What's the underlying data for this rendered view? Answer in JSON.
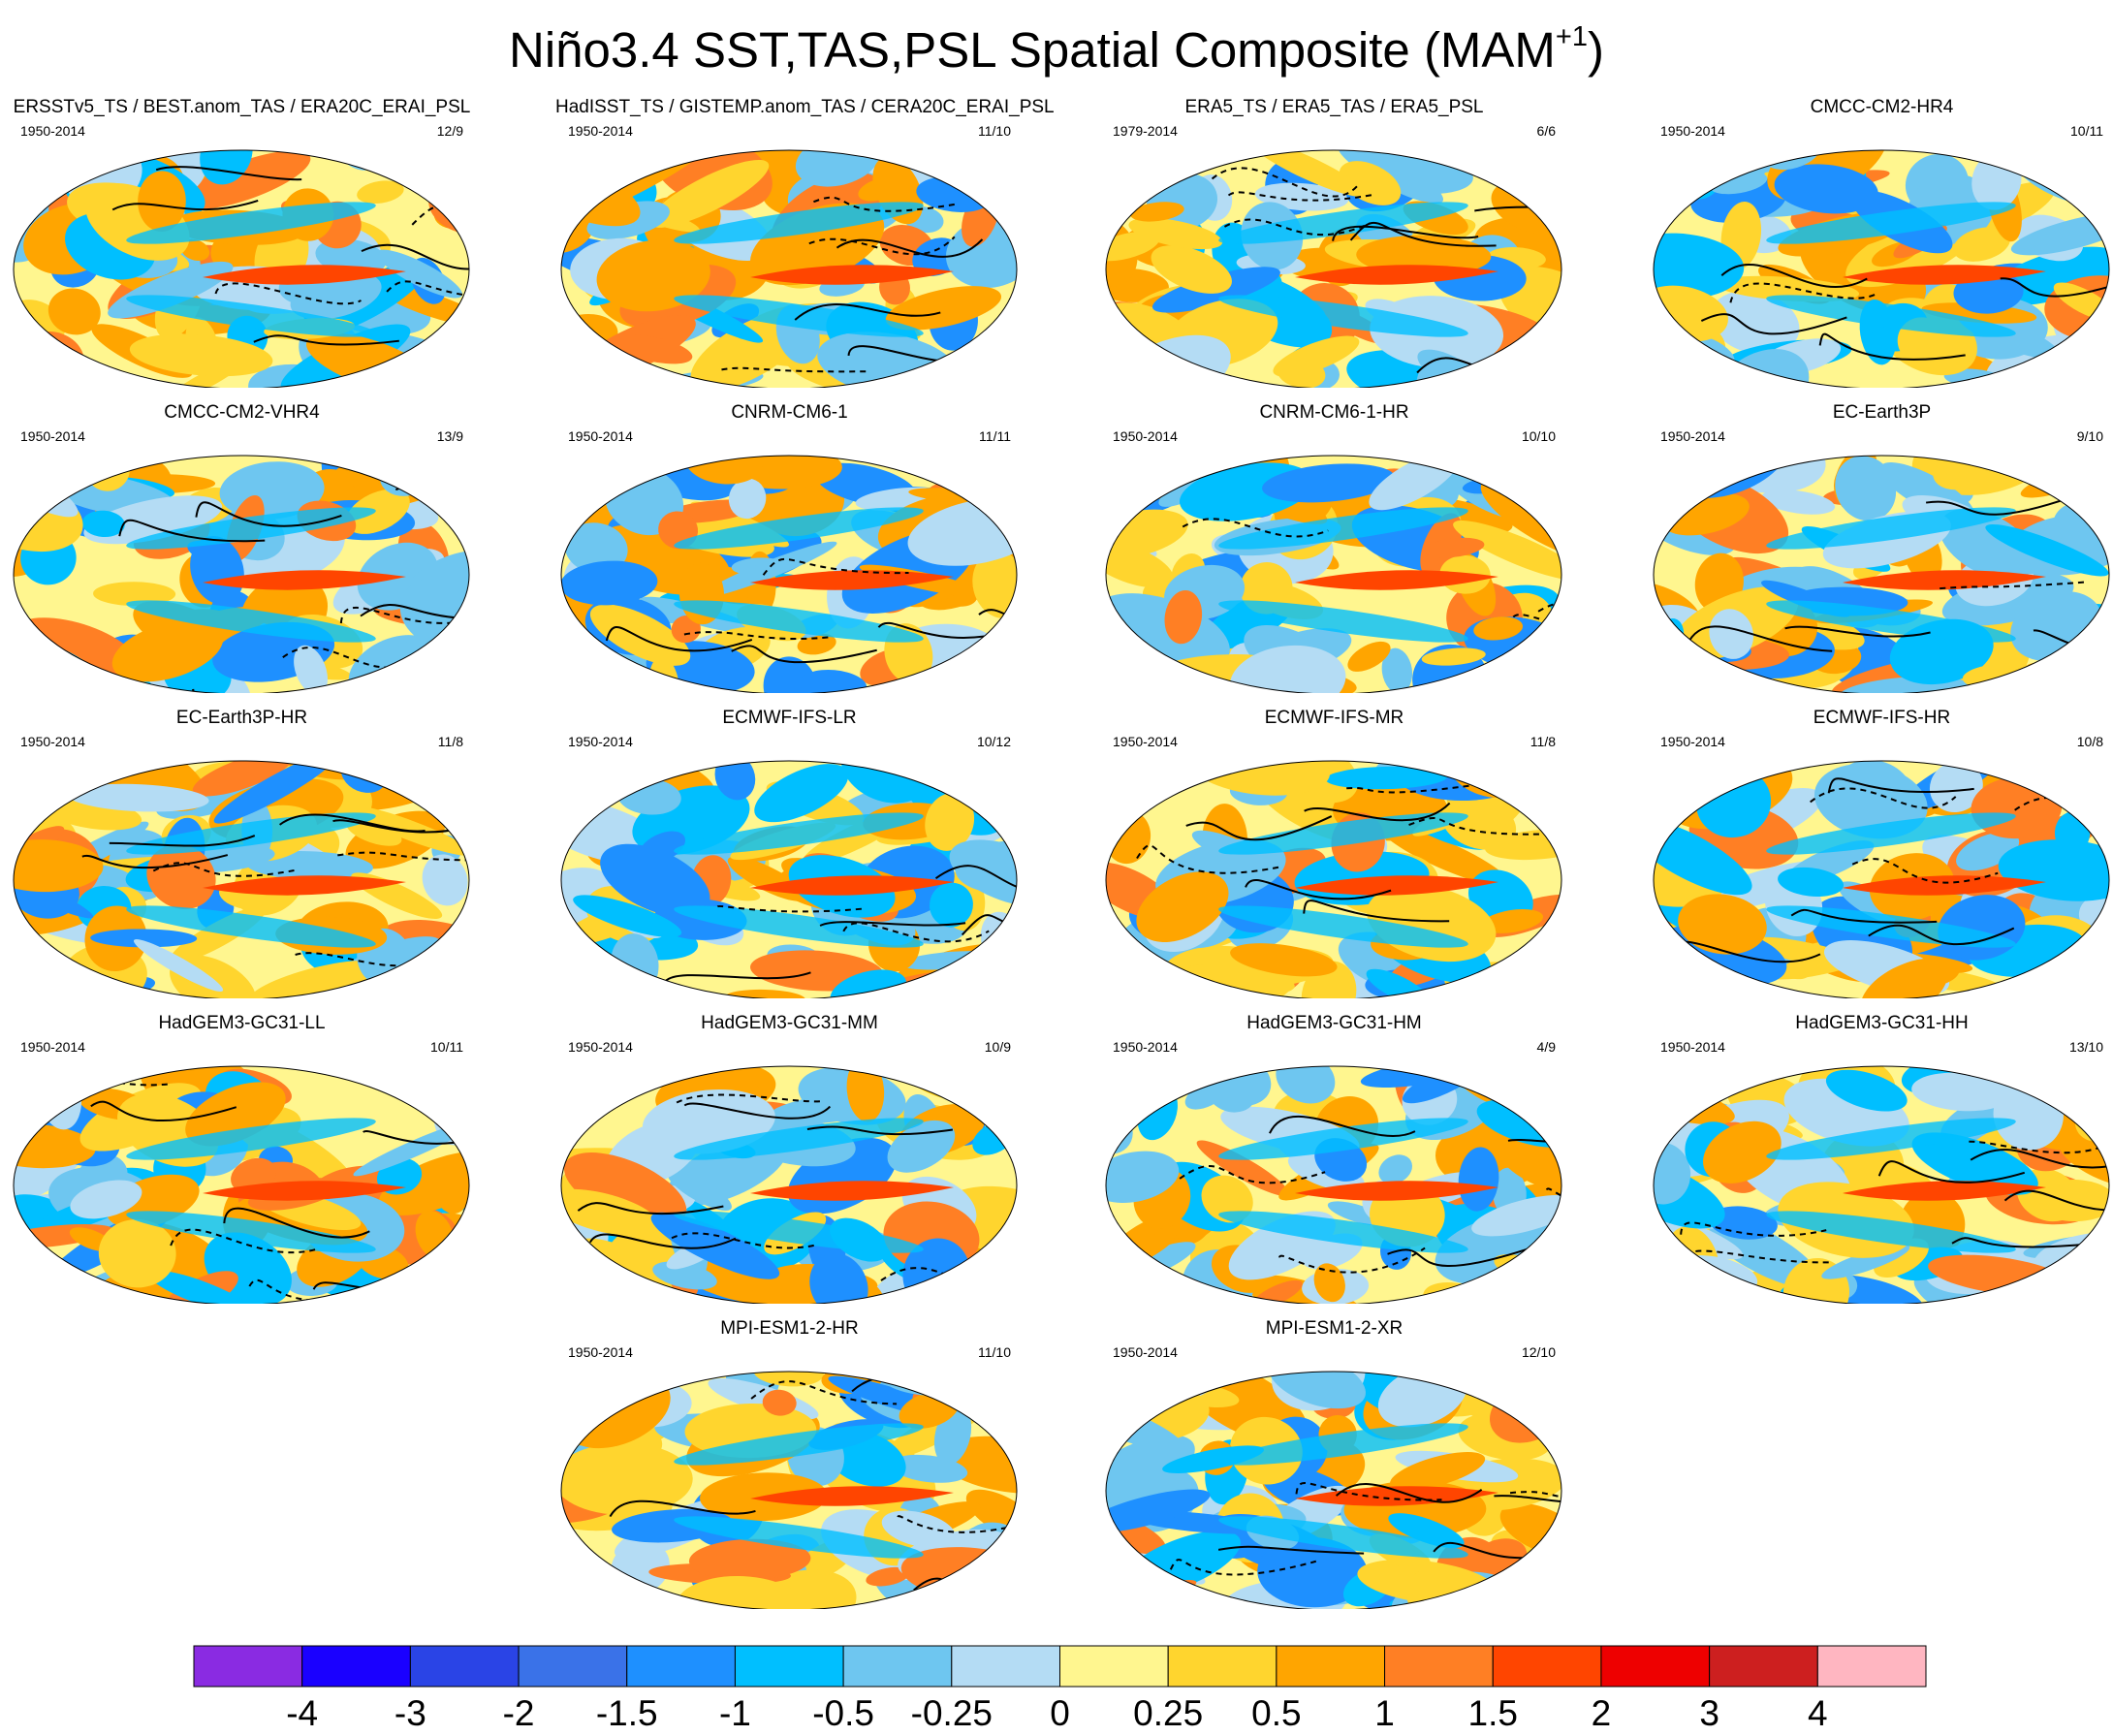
{
  "title_main": "Niño3.4 SST,TAS,PSL Spatial Composite (MAM",
  "title_sup": "+1",
  "title_end": ")",
  "panels": [
    {
      "name": "ERSSTv5_TS / BEST.anom_TAS / ERA20C_ERAI_PSL",
      "period": "1950-2014",
      "count": "12/9"
    },
    {
      "name": "HadISST_TS / GISTEMP.anom_TAS / CERA20C_ERAI_PSL",
      "period": "1950-2014",
      "count": "11/10"
    },
    {
      "name": "ERA5_TS / ERA5_TAS / ERA5_PSL",
      "period": "1979-2014",
      "count": "6/6"
    },
    {
      "name": "CMCC-CM2-HR4",
      "period": "1950-2014",
      "count": "10/11"
    },
    {
      "name": "CMCC-CM2-VHR4",
      "period": "1950-2014",
      "count": "13/9"
    },
    {
      "name": "CNRM-CM6-1",
      "period": "1950-2014",
      "count": "11/11"
    },
    {
      "name": "CNRM-CM6-1-HR",
      "period": "1950-2014",
      "count": "10/10"
    },
    {
      "name": "EC-Earth3P",
      "period": "1950-2014",
      "count": "9/10"
    },
    {
      "name": "EC-Earth3P-HR",
      "period": "1950-2014",
      "count": "11/8"
    },
    {
      "name": "ECMWF-IFS-LR",
      "period": "1950-2014",
      "count": "10/12"
    },
    {
      "name": "ECMWF-IFS-MR",
      "period": "1950-2014",
      "count": "11/8"
    },
    {
      "name": "ECMWF-IFS-HR",
      "period": "1950-2014",
      "count": "10/8"
    },
    {
      "name": "HadGEM3-GC31-LL",
      "period": "1950-2014",
      "count": "10/11"
    },
    {
      "name": "HadGEM3-GC31-MM",
      "period": "1950-2014",
      "count": "10/9"
    },
    {
      "name": "HadGEM3-GC31-HM",
      "period": "1950-2014",
      "count": "4/9"
    },
    {
      "name": "HadGEM3-GC31-HH",
      "period": "1950-2014",
      "count": "13/10"
    },
    {
      "name": "MPI-ESM1-2-HR",
      "period": "1950-2014",
      "count": "11/10"
    },
    {
      "name": "MPI-ESM1-2-XR",
      "period": "1950-2014",
      "count": "12/10"
    }
  ],
  "colorbar": {
    "colors": [
      "#8a2be2",
      "#1a00ff",
      "#2a44e6",
      "#3a72e8",
      "#1e90ff",
      "#00bfff",
      "#6ec6f0",
      "#b4dcf4",
      "#fff68f",
      "#ffd52e",
      "#ffa500",
      "#ff7f24",
      "#ff4500",
      "#ee0000",
      "#cd1f1f",
      "#ffb6c1"
    ],
    "labels": [
      "-4",
      "-3",
      "-2",
      "-1.5",
      "-1",
      "-0.5",
      "-0.25",
      "0",
      "0.25",
      "0.5",
      "1",
      "1.5",
      "2",
      "3",
      "4"
    ]
  },
  "chart_data": {
    "type": "heatmap",
    "title": "Niño3.4 SST,TAS,PSL Spatial Composite (MAM+1)",
    "projection": "global map, filled contours with overlaid line contours",
    "color_levels": [
      -4,
      -3,
      -2,
      -1.5,
      -1,
      -0.5,
      -0.25,
      0,
      0.25,
      0.5,
      1,
      1.5,
      2,
      3,
      4
    ],
    "panels": [
      {
        "name": "ERSSTv5_TS / BEST.anom_TAS / ERA20C_ERAI_PSL",
        "period": "1950-2014",
        "count": "12/9"
      },
      {
        "name": "HadISST_TS / GISTEMP.anom_TAS / CERA20C_ERAI_PSL",
        "period": "1950-2014",
        "count": "11/10"
      },
      {
        "name": "ERA5_TS / ERA5_TAS / ERA5_PSL",
        "period": "1979-2014",
        "count": "6/6"
      },
      {
        "name": "CMCC-CM2-HR4",
        "period": "1950-2014",
        "count": "10/11"
      },
      {
        "name": "CMCC-CM2-VHR4",
        "period": "1950-2014",
        "count": "13/9"
      },
      {
        "name": "CNRM-CM6-1",
        "period": "1950-2014",
        "count": "11/11"
      },
      {
        "name": "CNRM-CM6-1-HR",
        "period": "1950-2014",
        "count": "10/10"
      },
      {
        "name": "EC-Earth3P",
        "period": "1950-2014",
        "count": "9/10"
      },
      {
        "name": "EC-Earth3P-HR",
        "period": "1950-2014",
        "count": "11/8"
      },
      {
        "name": "ECMWF-IFS-LR",
        "period": "1950-2014",
        "count": "10/12"
      },
      {
        "name": "ECMWF-IFS-MR",
        "period": "1950-2014",
        "count": "11/8"
      },
      {
        "name": "ECMWF-IFS-HR",
        "period": "1950-2014",
        "count": "10/8"
      },
      {
        "name": "HadGEM3-GC31-LL",
        "period": "1950-2014",
        "count": "10/11"
      },
      {
        "name": "HadGEM3-GC31-MM",
        "period": "1950-2014",
        "count": "10/9"
      },
      {
        "name": "HadGEM3-GC31-HM",
        "period": "1950-2014",
        "count": "4/9"
      },
      {
        "name": "HadGEM3-GC31-HH",
        "period": "1950-2014",
        "count": "13/10"
      },
      {
        "name": "MPI-ESM1-2-HR",
        "period": "1950-2014",
        "count": "11/10"
      },
      {
        "name": "MPI-ESM1-2-XR",
        "period": "1950-2014",
        "count": "12/10"
      }
    ]
  }
}
